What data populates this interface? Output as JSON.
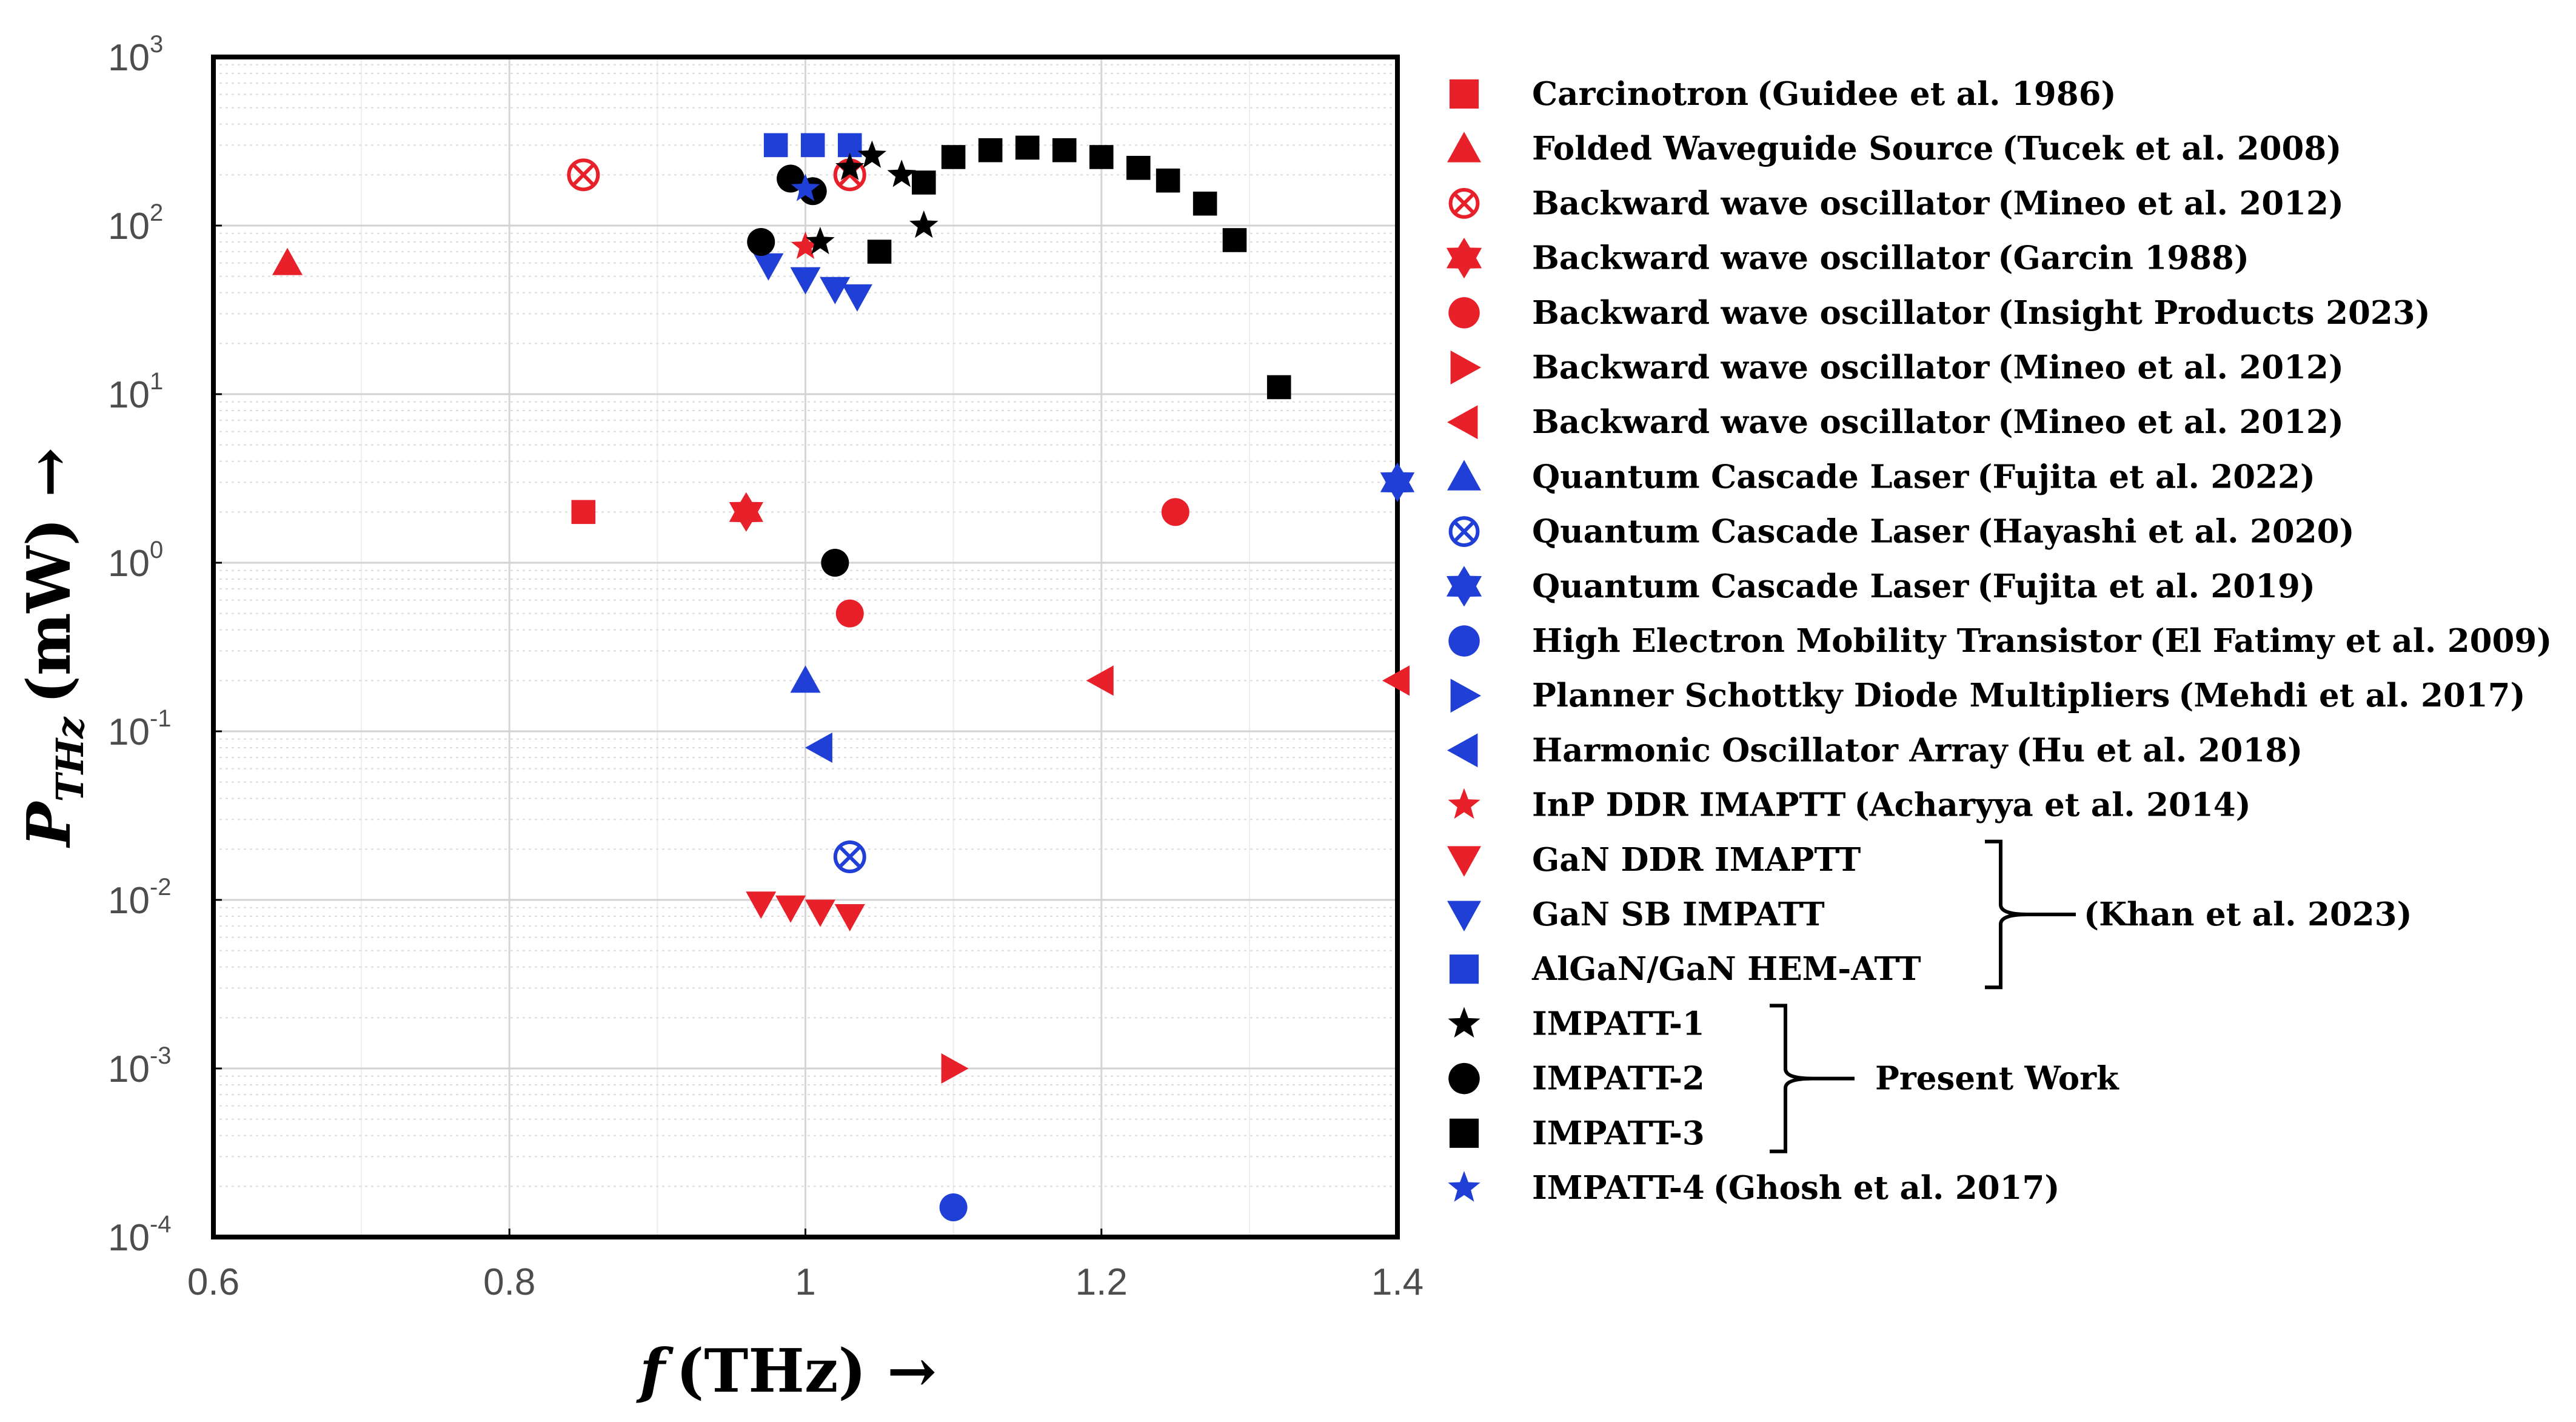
{
  "chart_data": {
    "type": "scatter",
    "title": "",
    "xlabel_var": "f",
    "xlabel_unit": "(THz) →",
    "ylabel_var": "P",
    "ylabel_sub": "THz",
    "ylabel_unit": "(mW) →",
    "xlim": [
      0.6,
      1.4
    ],
    "ylim_log10": [
      -4,
      3
    ],
    "y_scale": "log",
    "grid": true,
    "x_ticks": [
      0.6,
      0.8,
      1,
      1.2,
      1.4
    ],
    "x_tick_labels": [
      "0.6",
      "0.8",
      "1",
      "1.2",
      "1.4"
    ],
    "y_ticks": [
      {
        "value": -4,
        "base": "10",
        "exp": "-4"
      },
      {
        "value": -3,
        "base": "10",
        "exp": "-3"
      },
      {
        "value": -2,
        "base": "10",
        "exp": "-2"
      },
      {
        "value": -1,
        "base": "10",
        "exp": "-1"
      },
      {
        "value": 0,
        "base": "10",
        "exp": "0"
      },
      {
        "value": 1,
        "base": "10",
        "exp": "1"
      },
      {
        "value": 2,
        "base": "10",
        "exp": "2"
      },
      {
        "value": 3,
        "base": "10",
        "exp": "3"
      }
    ],
    "series": [
      {
        "name": "Carcinotron",
        "ref": "(Guidee et al. 1986)",
        "marker": "square",
        "color": "#e8202a",
        "points": [
          [
            0.85,
            2
          ]
        ]
      },
      {
        "name": "Folded Waveguide Source",
        "ref": "(Tucek et al. 2008)",
        "marker": "triangle-up",
        "color": "#e8202a",
        "points": [
          [
            0.65,
            60
          ]
        ]
      },
      {
        "name": "Backward wave oscillator",
        "ref": "(Mineo et al. 2012)",
        "marker": "circle-x",
        "color": "#e8202a",
        "points": [
          [
            0.85,
            200
          ],
          [
            1.03,
            200
          ]
        ]
      },
      {
        "name": "Backward wave oscillator",
        "ref": "(Garcin 1988)",
        "marker": "hexagram",
        "color": "#e8202a",
        "points": [
          [
            0.96,
            2
          ]
        ]
      },
      {
        "name": "Backward wave oscillator",
        "ref": "(Insight Products 2023)",
        "marker": "circle",
        "color": "#e8202a",
        "points": [
          [
            1.03,
            0.5
          ],
          [
            1.25,
            2
          ]
        ]
      },
      {
        "name": "Backward wave oscillator",
        "ref": "(Mineo et al. 2012)",
        "marker": "triangle-right",
        "color": "#e8202a",
        "points": [
          [
            1.1,
            0.001
          ]
        ]
      },
      {
        "name": "Backward wave oscillator",
        "ref": "(Mineo et al. 2012)",
        "marker": "triangle-left",
        "color": "#e8202a",
        "points": [
          [
            1.2,
            0.2
          ],
          [
            1.4,
            0.2
          ]
        ]
      },
      {
        "name": "Quantum Cascade Laser",
        "ref": "(Fujita et al. 2022)",
        "marker": "triangle-up",
        "color": "#1f3fd6",
        "points": [
          [
            1.0,
            0.2
          ]
        ]
      },
      {
        "name": "Quantum Cascade Laser",
        "ref": "(Hayashi et al. 2020)",
        "marker": "circle-x",
        "color": "#1f3fd6",
        "points": [
          [
            1.03,
            0.018
          ]
        ]
      },
      {
        "name": "Quantum Cascade Laser",
        "ref": "(Fujita et al. 2019)",
        "marker": "hexagram",
        "color": "#1f3fd6",
        "points": [
          [
            1.4,
            3
          ]
        ]
      },
      {
        "name": "High Electron Mobility Transistor",
        "ref": "(El Fatimy et al. 2009)",
        "marker": "circle",
        "color": "#1f3fd6",
        "points": [
          [
            1.1,
            0.00015
          ]
        ]
      },
      {
        "name": "Planner Schottky Diode Multipliers",
        "ref": "(Mehdi et al. 2017)",
        "marker": "triangle-right",
        "color": "#1f3fd6",
        "points": []
      },
      {
        "name": "Harmonic Oscillator Array",
        "ref": "(Hu et al. 2018)",
        "marker": "triangle-left",
        "color": "#1f3fd6",
        "points": [
          [
            1.01,
            0.08
          ]
        ]
      },
      {
        "name": "InP DDR IMAPTT",
        "ref": "(Acharyya et al. 2014)",
        "marker": "star",
        "color": "#e8202a",
        "points": [
          [
            1.0,
            75
          ]
        ]
      },
      {
        "name": "GaN DDR IMAPTT",
        "ref": "",
        "marker": "triangle-down",
        "color": "#e8202a",
        "points": [
          [
            0.97,
            0.0095
          ],
          [
            0.99,
            0.009
          ],
          [
            1.01,
            0.0085
          ],
          [
            1.03,
            0.008
          ]
        ]
      },
      {
        "name": "GaN SB IMPATT",
        "ref": "",
        "marker": "triangle-down",
        "color": "#1f3fd6",
        "points": [
          [
            0.975,
            58
          ],
          [
            1.0,
            48
          ],
          [
            1.02,
            42
          ],
          [
            1.035,
            38
          ]
        ]
      },
      {
        "name": "AlGaN/GaN HEM-ATT",
        "ref": "",
        "marker": "square",
        "color": "#1f3fd6",
        "points": [
          [
            0.98,
            300
          ],
          [
            1.005,
            300
          ],
          [
            1.03,
            300
          ]
        ]
      },
      {
        "name": "IMPATT-1",
        "ref": "",
        "marker": "star",
        "color": "#000000",
        "points": [
          [
            1.01,
            80
          ],
          [
            1.03,
            220
          ],
          [
            1.045,
            260
          ],
          [
            1.065,
            200
          ],
          [
            1.08,
            100
          ]
        ]
      },
      {
        "name": "IMPATT-2",
        "ref": "",
        "marker": "circle",
        "color": "#000000",
        "points": [
          [
            0.97,
            80
          ],
          [
            0.99,
            190
          ],
          [
            1.005,
            160
          ],
          [
            1.02,
            1
          ]
        ]
      },
      {
        "name": "IMPATT-3",
        "ref": "",
        "marker": "square",
        "color": "#000000",
        "points": [
          [
            1.05,
            70
          ],
          [
            1.08,
            180
          ],
          [
            1.1,
            255
          ],
          [
            1.125,
            280
          ],
          [
            1.15,
            290
          ],
          [
            1.175,
            280
          ],
          [
            1.2,
            255
          ],
          [
            1.225,
            220
          ],
          [
            1.245,
            185
          ],
          [
            1.27,
            135
          ],
          [
            1.29,
            82
          ],
          [
            1.32,
            11
          ]
        ]
      },
      {
        "name": "IMPATT-4",
        "ref": "(Ghosh et al. 2017)",
        "marker": "star",
        "color": "#1f3fd6",
        "points": [
          [
            1.0,
            165
          ]
        ]
      }
    ],
    "groups": [
      {
        "label": "(Khan et al. 2023)",
        "members": [
          "GaN DDR IMAPTT",
          "GaN SB IMPATT",
          "AlGaN/GaN HEM-ATT"
        ]
      },
      {
        "label": "Present Work",
        "members": [
          "IMPATT-1",
          "IMPATT-2",
          "IMPATT-3"
        ]
      }
    ]
  }
}
